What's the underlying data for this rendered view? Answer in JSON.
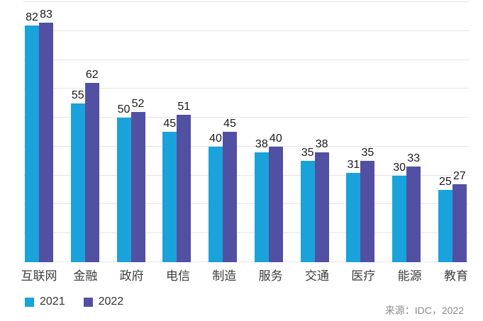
{
  "chart_data": {
    "type": "bar",
    "title": "",
    "xlabel": "",
    "ylabel": "",
    "categories": [
      "互联网",
      "金融",
      "政府",
      "电信",
      "制造",
      "服务",
      "交通",
      "医疗",
      "能源",
      "教育"
    ],
    "series": [
      {
        "name": "2021",
        "color": "#1aa2db",
        "values": [
          82,
          55,
          50,
          45,
          40,
          38,
          35,
          31,
          30,
          25
        ]
      },
      {
        "name": "2022",
        "color": "#5250a2",
        "values": [
          83,
          62,
          52,
          51,
          45,
          40,
          38,
          35,
          33,
          27
        ]
      }
    ],
    "ylim": [
      0,
      90
    ],
    "grid_step": 10,
    "grid": true,
    "data_labels": true,
    "legend_position": "bottom-left",
    "y_axis_labels_visible": false
  },
  "footer": {
    "source": "来源：IDC，2022"
  }
}
